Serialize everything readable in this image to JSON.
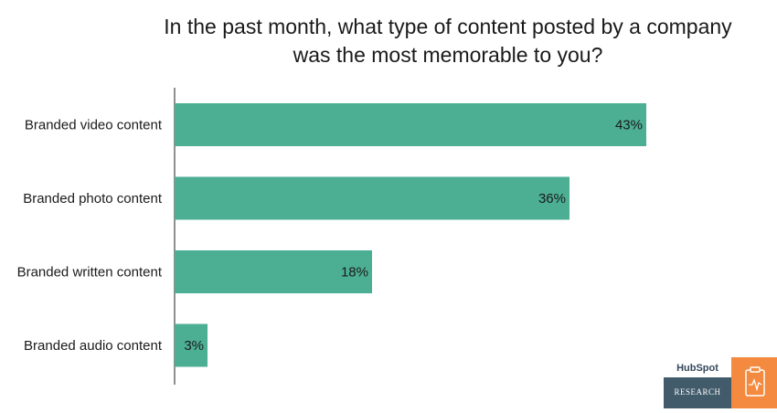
{
  "chart_data": {
    "type": "bar",
    "orientation": "horizontal",
    "title": "In the past month, what type of content posted by a company was the most memorable to you?",
    "categories": [
      "Branded video content",
      "Branded photo content",
      "Branded written content",
      "Branded audio content"
    ],
    "values": [
      43,
      36,
      18,
      3
    ],
    "value_labels": [
      "43%",
      "36%",
      "18%",
      "3%"
    ],
    "xlim": [
      0,
      45
    ],
    "grid": false,
    "bar_color": "#4caf94"
  },
  "branding": {
    "logo": "HubSpot",
    "badge": "RESEARCH",
    "accent_color": "#f38a3f",
    "icon": "clipboard-pulse-icon"
  }
}
